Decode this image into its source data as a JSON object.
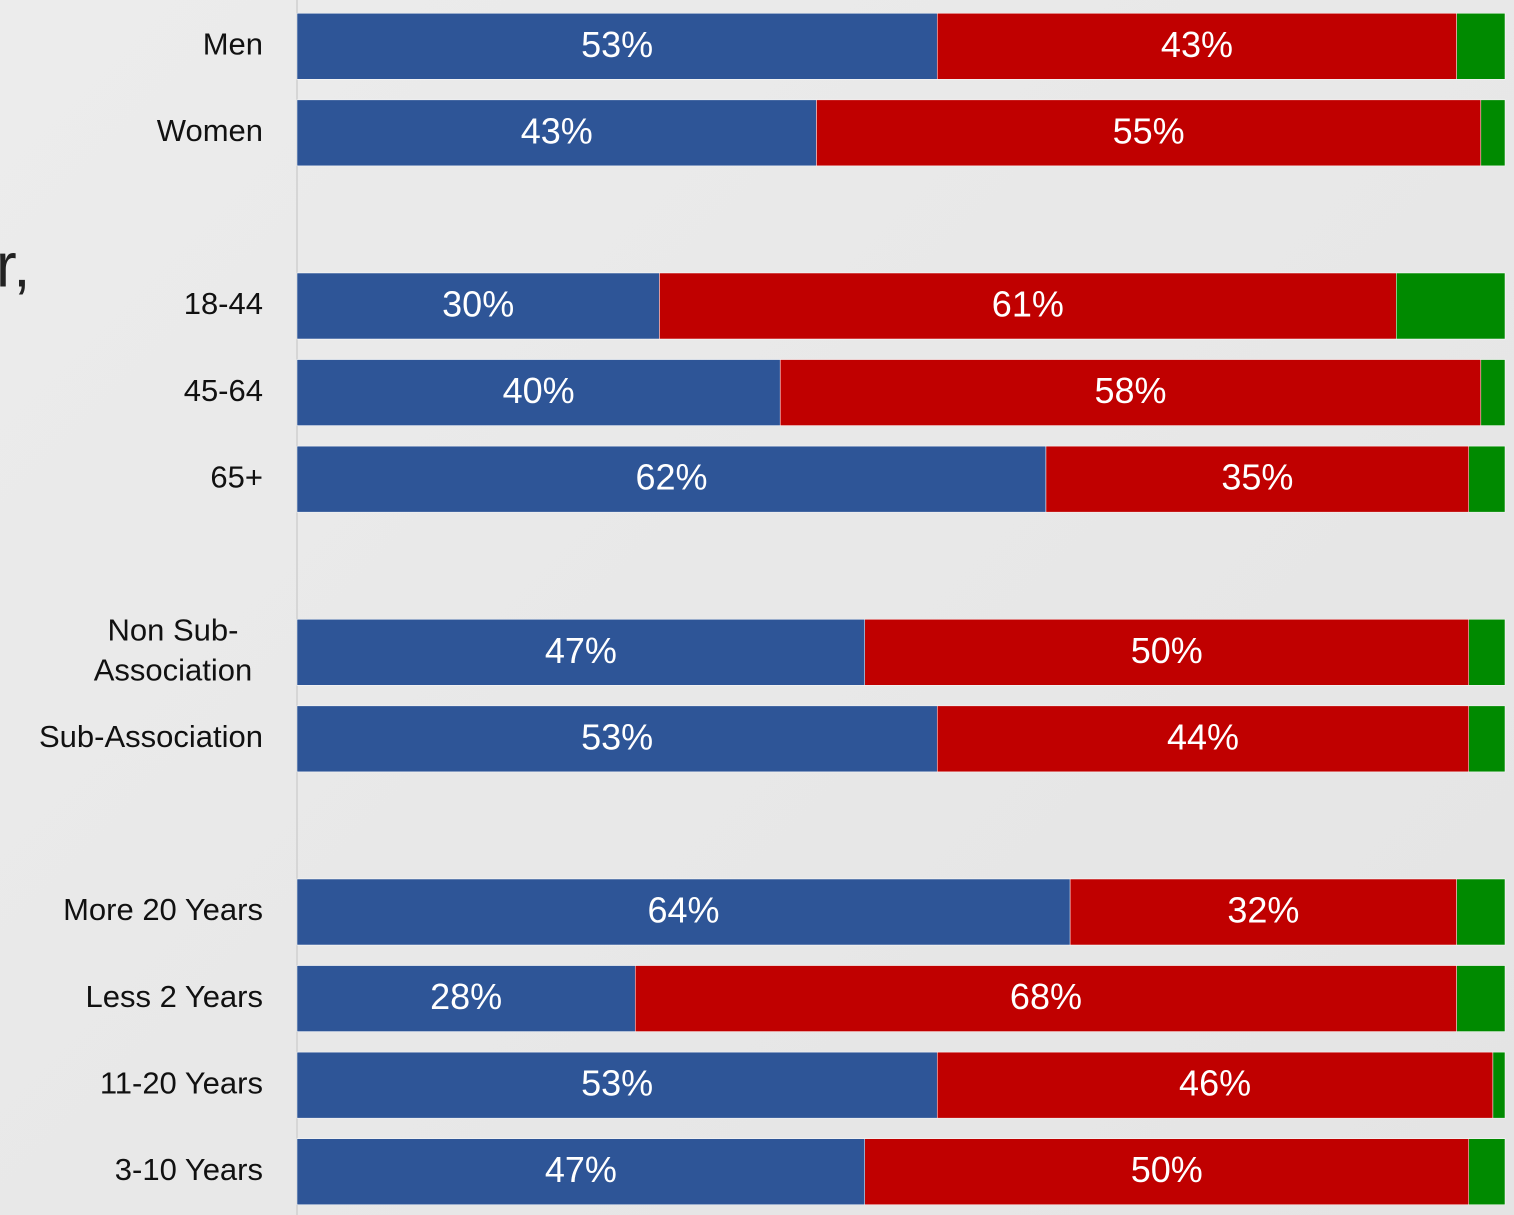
{
  "title": "r,",
  "chart_data": {
    "type": "stacked-bar-horizontal",
    "categories": [
      "Men",
      "Women",
      null,
      "18-44",
      "45-64",
      "65+",
      null,
      "Non Sub-\nAssociation",
      "Sub-Association",
      null,
      "More 20 Years",
      "Less 2 Years",
      "11-20 Years",
      "3-10 Years"
    ],
    "xlim": [
      0,
      100
    ],
    "series": [
      {
        "color": "#2e5597",
        "values": [
          53,
          43,
          null,
          30,
          40,
          62,
          null,
          47,
          53,
          null,
          64,
          28,
          53,
          47
        ],
        "value_labels": [
          "53%",
          "43%",
          null,
          "30%",
          "40%",
          "62%",
          null,
          "47%",
          "53%",
          null,
          "64%",
          "28%",
          "53%",
          "47%"
        ]
      },
      {
        "color": "#c00000",
        "values": [
          43,
          55,
          null,
          61,
          58,
          35,
          null,
          50,
          44,
          null,
          32,
          68,
          46,
          50
        ],
        "value_labels": [
          "43%",
          "55%",
          null,
          "61%",
          "58%",
          "35%",
          null,
          "50%",
          "44%",
          null,
          "32%",
          "68%",
          "46%",
          "50%"
        ]
      },
      {
        "color": "#008a00",
        "values": [
          4,
          2,
          null,
          9,
          2,
          3,
          null,
          3,
          3,
          null,
          4,
          4,
          1,
          3
        ]
      }
    ]
  }
}
